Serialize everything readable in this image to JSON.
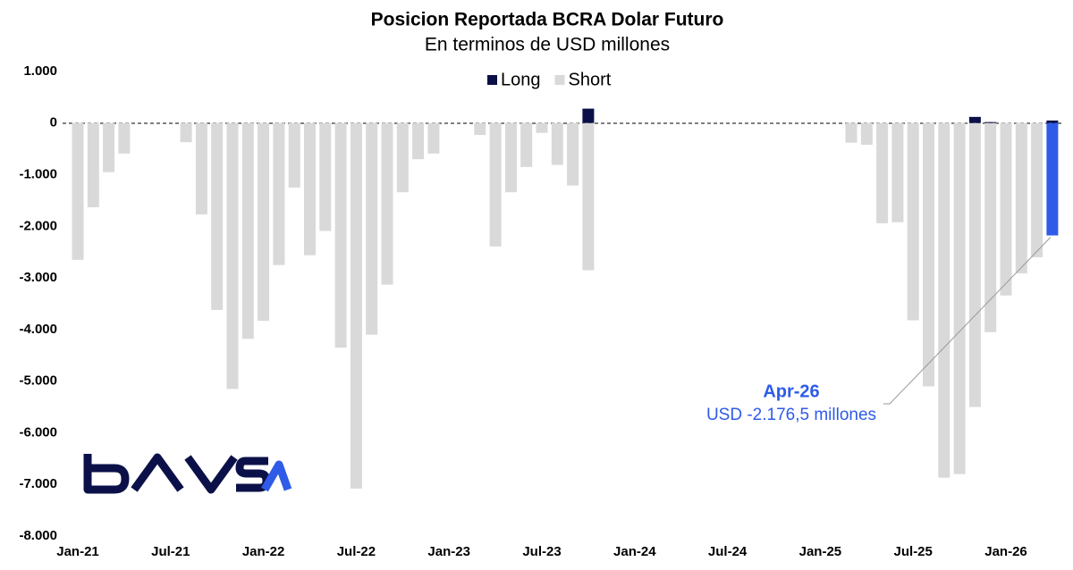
{
  "chart_data": {
    "type": "bar",
    "title": "Posicion Reportada BCRA Dolar Futuro",
    "subtitle": "En terminos de USD millones",
    "categories": [
      "Jan-21",
      null,
      null,
      null,
      null,
      null,
      "Jul-21",
      null,
      null,
      null,
      null,
      null,
      "Jan-22",
      null,
      null,
      null,
      null,
      null,
      "Jul-22",
      null,
      null,
      null,
      null,
      null,
      "Jan-23",
      null,
      null,
      null,
      null,
      null,
      "Jul-23",
      null,
      null,
      null,
      null,
      null,
      "Jan-24",
      null,
      null,
      null,
      null,
      null,
      "Jul-24",
      null,
      null,
      null,
      null,
      null,
      "Jan-25",
      null,
      null,
      null,
      null,
      null,
      "Jul-25",
      null,
      null,
      null,
      null,
      null,
      "Jan-26",
      null,
      null,
      null
    ],
    "series": [
      {
        "name": "Long",
        "color": "#0b1148",
        "values": [
          0,
          0,
          0,
          0,
          0,
          0,
          0,
          0,
          0,
          0,
          0,
          0,
          0,
          0,
          0,
          0,
          0,
          0,
          0,
          0,
          0,
          0,
          0,
          0,
          0,
          0,
          0,
          0,
          0,
          0,
          0,
          0,
          0,
          280,
          0,
          0,
          0,
          0,
          0,
          0,
          0,
          0,
          0,
          0,
          0,
          0,
          0,
          0,
          0,
          0,
          0,
          0,
          0,
          0,
          0,
          0,
          0,
          0,
          120,
          20,
          0,
          0,
          0,
          50
        ]
      },
      {
        "name": "Short",
        "color": "#d9d9d9",
        "values": [
          -2650,
          -1630,
          -950,
          -590,
          0,
          0,
          0,
          -370,
          -1770,
          -3620,
          -5150,
          -4180,
          -3830,
          -2750,
          -1250,
          -2560,
          -2090,
          -4350,
          -7080,
          -4100,
          -3130,
          -1340,
          -700,
          -590,
          0,
          0,
          -230,
          -2390,
          -1340,
          -850,
          -190,
          -810,
          -1210,
          -2850,
          0,
          0,
          0,
          0,
          0,
          0,
          0,
          0,
          0,
          0,
          0,
          0,
          0,
          0,
          0,
          0,
          -380,
          -420,
          -1940,
          -1920,
          -3820,
          -5100,
          -6870,
          -6800,
          -5500,
          -4050,
          -3340,
          -2910,
          -2600,
          -2176.5
        ]
      }
    ],
    "highlight": {
      "series": 1,
      "index": 63,
      "color": "#2f5be8"
    },
    "annotation": {
      "title": "Apr-26",
      "text": "USD -2.176,5 millones"
    },
    "ylim": [
      -8000,
      1000
    ],
    "yticks": [
      {
        "value": 1000,
        "label": "1.000"
      },
      0,
      {
        "value": -1000,
        "label": "-1.000"
      },
      {
        "value": -2000,
        "label": "-2.000"
      },
      {
        "value": -3000,
        "label": "-3.000"
      },
      {
        "value": -4000,
        "label": "-4.000"
      },
      {
        "value": -5000,
        "label": "-5.000"
      },
      {
        "value": -6000,
        "label": "-6.000"
      },
      {
        "value": -7000,
        "label": "-7.000"
      },
      {
        "value": -8000,
        "label": "-8.000"
      }
    ],
    "legend": "top"
  }
}
